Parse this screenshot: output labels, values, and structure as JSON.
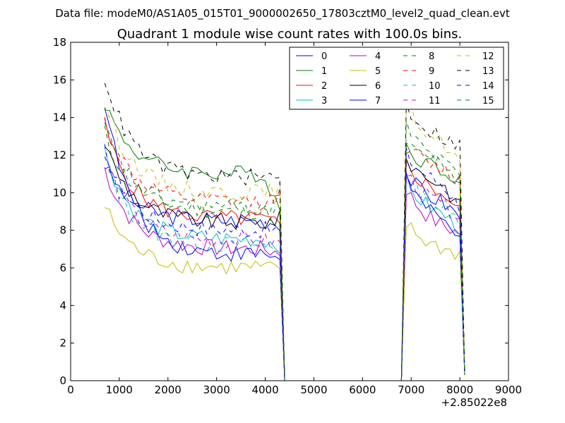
{
  "suptitle": "Data file: modeM0/AS1A05_015T01_9000002650_17803cztM0_level2_quad_clean.evt",
  "chart_data": {
    "type": "line",
    "title": "Quadrant 1 module wise count rates with 100.0s bins.",
    "xlabel": "",
    "ylabel": "",
    "x_offset_label": "+2.85022e8",
    "xlim": [
      0,
      9000
    ],
    "ylim": [
      0,
      18
    ],
    "x_ticks": [
      0,
      1000,
      2000,
      3000,
      4000,
      5000,
      6000,
      7000,
      8000,
      9000
    ],
    "y_ticks": [
      0,
      2,
      4,
      6,
      8,
      10,
      12,
      14,
      16,
      18
    ],
    "legend_position": "top-right",
    "segments": [
      {
        "x_start": 700,
        "x_end": 4300
      },
      {
        "x_start": 6900,
        "x_end": 8000
      }
    ],
    "zero_points": [
      4400,
      4500,
      4600,
      4700,
      4800,
      4900,
      5000,
      5100,
      5200,
      5300,
      5400,
      5500,
      5600,
      5700,
      5800,
      5900,
      6000,
      6100,
      6200,
      6300,
      6400,
      6500,
      6600,
      6700,
      6800
    ],
    "tail_points": [
      {
        "x": 8100,
        "y": 0.3
      }
    ],
    "series": [
      {
        "name": "0",
        "color": "#0000ff",
        "dash": "solid",
        "base1": 8.5,
        "start1": 11.5,
        "end1": 8.4,
        "base2": 9.0,
        "start2": 11.0,
        "end2": 8.5
      },
      {
        "name": "1",
        "color": "#008000",
        "dash": "solid",
        "base1": 11.0,
        "start1": 14.8,
        "end1": 9.2,
        "base2": 10.8,
        "start2": 12.5,
        "end2": 10.6
      },
      {
        "name": "2",
        "color": "#ff0000",
        "dash": "solid",
        "base1": 8.6,
        "start1": 13.6,
        "end1": 8.2,
        "base2": 9.5,
        "start2": 11.5,
        "end2": 8.7
      },
      {
        "name": "3",
        "color": "#00bfbf",
        "dash": "solid",
        "base1": 7.5,
        "start1": 12.2,
        "end1": 7.2,
        "base2": 8.3,
        "start2": 10.5,
        "end2": 7.8
      },
      {
        "name": "4",
        "color": "#bf00bf",
        "dash": "solid",
        "base1": 7.0,
        "start1": 11.3,
        "end1": 6.8,
        "base2": 7.6,
        "start2": 10.2,
        "end2": 7.5
      },
      {
        "name": "5",
        "color": "#bfbf00",
        "dash": "solid",
        "base1": 6.0,
        "start1": 9.3,
        "end1": 5.8,
        "base2": 6.6,
        "start2": 8.3,
        "end2": 6.5
      },
      {
        "name": "6",
        "color": "#000000",
        "dash": "solid",
        "base1": 8.4,
        "start1": 12.7,
        "end1": 8.6,
        "base2": 10.0,
        "start2": 11.8,
        "end2": 9.0
      },
      {
        "name": "7",
        "color": "#0000ff",
        "dash": "solid",
        "base1": 6.7,
        "start1": 14.9,
        "end1": 6.6,
        "base2": 7.6,
        "start2": 10.9,
        "end2": 7.5
      },
      {
        "name": "8",
        "color": "#008000",
        "dash": "dashed",
        "base1": 9.0,
        "start1": 13.2,
        "end1": 8.8,
        "base2": 11.0,
        "start2": 13.5,
        "end2": 10.6
      },
      {
        "name": "9",
        "color": "#ff0000",
        "dash": "dashed",
        "base1": 9.5,
        "start1": 13.8,
        "end1": 9.8,
        "base2": 10.8,
        "start2": 12.5,
        "end2": 10.4
      },
      {
        "name": "10",
        "color": "#00bfbf",
        "dash": "dashed",
        "base1": 7.2,
        "start1": 11.8,
        "end1": 7.0,
        "base2": 8.5,
        "start2": 11.0,
        "end2": 8.2
      },
      {
        "name": "11",
        "color": "#bf00bf",
        "dash": "dashed",
        "base1": 7.4,
        "start1": 12.0,
        "end1": 7.3,
        "base2": 8.8,
        "start2": 11.0,
        "end2": 8.5
      },
      {
        "name": "12",
        "color": "#bfbf00",
        "dash": "dashed",
        "base1": 10.0,
        "start1": 14.8,
        "end1": 10.2,
        "base2": 12.0,
        "start2": 14.7,
        "end2": 11.3
      },
      {
        "name": "13",
        "color": "#000000",
        "dash": "dashed",
        "base1": 10.8,
        "start1": 16.2,
        "end1": 11.0,
        "base2": 12.4,
        "start2": 14.6,
        "end2": 12.2
      },
      {
        "name": "14",
        "color": "#0000ff",
        "dash": "dashed",
        "base1": 8.0,
        "start1": 12.2,
        "end1": 8.0,
        "base2": 10.0,
        "start2": 12.0,
        "end2": 9.0
      },
      {
        "name": "15",
        "color": "#008000",
        "dash": "dashed",
        "base1": 9.2,
        "start1": 13.5,
        "end1": 9.5,
        "base2": 11.0,
        "start2": 13.0,
        "end2": 10.4
      }
    ]
  }
}
